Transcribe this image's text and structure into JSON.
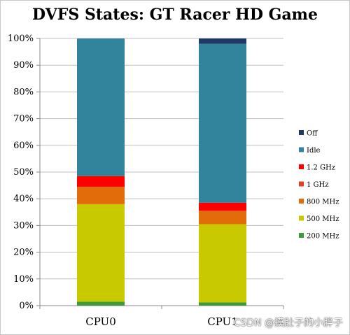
{
  "chart_data": {
    "type": "bar",
    "stacked": true,
    "title": "DVFS States: GT Racer HD Game",
    "categories": [
      "CPU0",
      "CPU1"
    ],
    "ylim": [
      0,
      100
    ],
    "y_ticks": [
      "0%",
      "10%",
      "20%",
      "30%",
      "40%",
      "50%",
      "60%",
      "70%",
      "80%",
      "90%",
      "100%"
    ],
    "grid": true,
    "legend_position": "right",
    "series": [
      {
        "name": "200 MHz",
        "color": "#3f9a3c",
        "values": [
          1.5,
          1.2
        ]
      },
      {
        "name": "500 MHz",
        "color": "#c9c900",
        "values": [
          36.5,
          29.3
        ]
      },
      {
        "name": "800 MHz",
        "color": "#e36c0a",
        "values": [
          6.5,
          5.0
        ]
      },
      {
        "name": "1 GHz",
        "color": "#e04020",
        "values": [
          0,
          0
        ]
      },
      {
        "name": "1.2 GHz",
        "color": "#ff0000",
        "values": [
          4.0,
          3.0
        ]
      },
      {
        "name": "Idle",
        "color": "#31849b",
        "values": [
          51.5,
          59.5
        ]
      },
      {
        "name": "Off",
        "color": "#1f3864",
        "values": [
          0,
          2.0
        ]
      }
    ]
  },
  "watermark": "CSDN @摸肚子的小胖子"
}
